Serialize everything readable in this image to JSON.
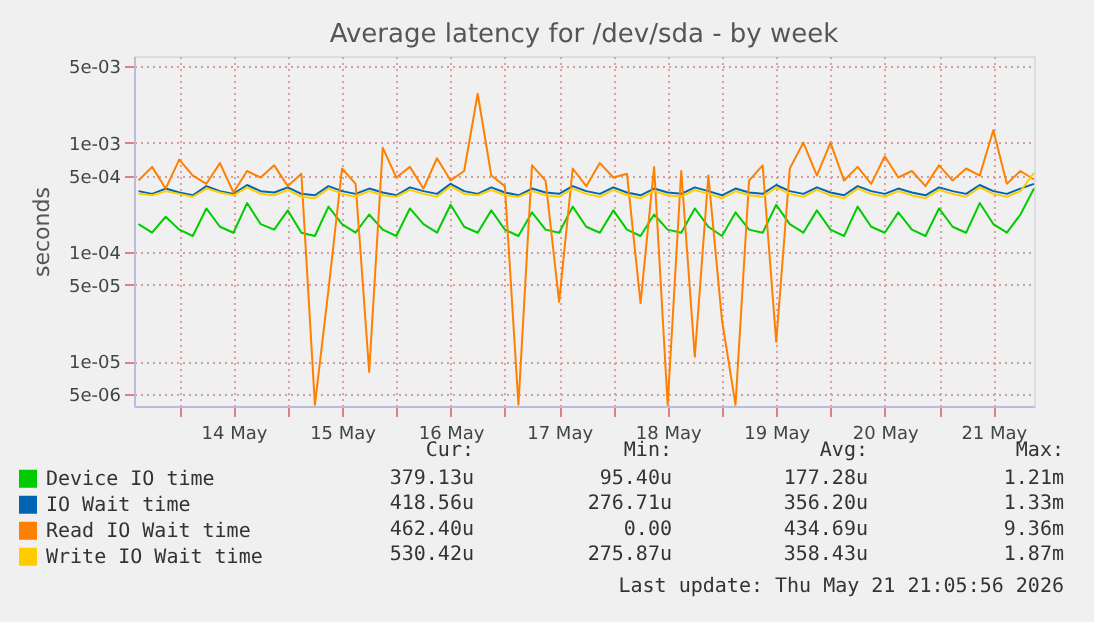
{
  "chart_data": {
    "type": "line",
    "title": "Average latency for /dev/sda - by week",
    "ylabel": "seconds",
    "log": "y",
    "grid": true,
    "legend": "bottom",
    "marker": "none",
    "line_style": "solid",
    "ylim": [
      3.9e-06,
      0.0062
    ],
    "yticks": [
      {
        "value": 0.005,
        "label": "5e-03"
      },
      {
        "value": 0.001,
        "label": "1e-03"
      },
      {
        "value": 0.0005,
        "label": "5e-04"
      },
      {
        "value": 0.0001,
        "label": "1e-04"
      },
      {
        "value": 5e-05,
        "label": "5e-05"
      },
      {
        "value": 1e-05,
        "label": "1e-05"
      },
      {
        "value": 5e-06,
        "label": "5e-06"
      }
    ],
    "xlim": [
      "2026-05-13T14:00",
      "2026-05-21T21:00"
    ],
    "xticks": [
      {
        "value": "2026-05-14T00:00",
        "label": null
      },
      {
        "value": "2026-05-14T12:00",
        "label": "14 May"
      },
      {
        "value": "2026-05-15T00:00",
        "label": null
      },
      {
        "value": "2026-05-15T12:00",
        "label": "15 May"
      },
      {
        "value": "2026-05-16T00:00",
        "label": null
      },
      {
        "value": "2026-05-16T12:00",
        "label": "16 May"
      },
      {
        "value": "2026-05-17T00:00",
        "label": null
      },
      {
        "value": "2026-05-17T12:00",
        "label": "17 May"
      },
      {
        "value": "2026-05-18T00:00",
        "label": null
      },
      {
        "value": "2026-05-18T12:00",
        "label": "18 May"
      },
      {
        "value": "2026-05-19T00:00",
        "label": null
      },
      {
        "value": "2026-05-19T12:00",
        "label": "19 May"
      },
      {
        "value": "2026-05-20T00:00",
        "label": null
      },
      {
        "value": "2026-05-20T12:00",
        "label": "20 May"
      },
      {
        "value": "2026-05-21T00:00",
        "label": null
      },
      {
        "value": "2026-05-21T12:00",
        "label": "21 May"
      }
    ],
    "x": [
      "2026-05-13T15:00",
      "2026-05-13T18:00",
      "2026-05-13T21:00",
      "2026-05-14T00:00",
      "2026-05-14T03:00",
      "2026-05-14T06:00",
      "2026-05-14T09:00",
      "2026-05-14T12:00",
      "2026-05-14T15:00",
      "2026-05-14T18:00",
      "2026-05-14T21:00",
      "2026-05-15T00:00",
      "2026-05-15T03:00",
      "2026-05-15T06:00",
      "2026-05-15T09:00",
      "2026-05-15T12:00",
      "2026-05-15T15:00",
      "2026-05-15T18:00",
      "2026-05-15T21:00",
      "2026-05-16T00:00",
      "2026-05-16T03:00",
      "2026-05-16T06:00",
      "2026-05-16T09:00",
      "2026-05-16T12:00",
      "2026-05-16T15:00",
      "2026-05-16T18:00",
      "2026-05-16T21:00",
      "2026-05-17T00:00",
      "2026-05-17T03:00",
      "2026-05-17T06:00",
      "2026-05-17T09:00",
      "2026-05-17T12:00",
      "2026-05-17T15:00",
      "2026-05-17T18:00",
      "2026-05-17T21:00",
      "2026-05-18T00:00",
      "2026-05-18T03:00",
      "2026-05-18T06:00",
      "2026-05-18T09:00",
      "2026-05-18T12:00",
      "2026-05-18T15:00",
      "2026-05-18T18:00",
      "2026-05-18T21:00",
      "2026-05-19T00:00",
      "2026-05-19T03:00",
      "2026-05-19T06:00",
      "2026-05-19T09:00",
      "2026-05-19T12:00",
      "2026-05-19T15:00",
      "2026-05-19T18:00",
      "2026-05-19T21:00",
      "2026-05-20T00:00",
      "2026-05-20T03:00",
      "2026-05-20T06:00",
      "2026-05-20T09:00",
      "2026-05-20T12:00",
      "2026-05-20T15:00",
      "2026-05-20T18:00",
      "2026-05-20T21:00",
      "2026-05-21T00:00",
      "2026-05-21T03:00",
      "2026-05-21T06:00",
      "2026-05-21T09:00",
      "2026-05-21T12:00",
      "2026-05-21T15:00",
      "2026-05-21T18:00",
      "2026-05-21T21:00"
    ],
    "series": [
      {
        "name": "Device IO time",
        "color": "#00cc00",
        "values": [
          0.00018,
          0.00015,
          0.00021,
          0.00016,
          0.00014,
          0.00025,
          0.00017,
          0.00015,
          0.00028,
          0.00018,
          0.00016,
          0.00024,
          0.00015,
          0.00014,
          0.00026,
          0.00018,
          0.00015,
          0.00022,
          0.00016,
          0.00014,
          0.00025,
          0.00018,
          0.00015,
          0.00027,
          0.00017,
          0.00015,
          0.00024,
          0.00016,
          0.00014,
          0.00023,
          0.00016,
          0.00015,
          0.00026,
          0.00017,
          0.00015,
          0.00024,
          0.00016,
          0.00014,
          0.00022,
          0.00016,
          0.00015,
          0.00025,
          0.00017,
          0.00014,
          0.00023,
          0.00016,
          0.00015,
          0.00027,
          0.00018,
          0.00015,
          0.00024,
          0.00016,
          0.00014,
          0.00026,
          0.00017,
          0.00015,
          0.00023,
          0.00016,
          0.00014,
          0.00025,
          0.00017,
          0.00015,
          0.00028,
          0.00018,
          0.00015,
          0.00022,
          0.00038
        ]
      },
      {
        "name": "IO Wait time",
        "color": "#0066b3",
        "values": [
          0.00036,
          0.00034,
          0.00038,
          0.00035,
          0.00033,
          0.0004,
          0.00036,
          0.00034,
          0.00041,
          0.00036,
          0.00035,
          0.00039,
          0.00034,
          0.00033,
          0.0004,
          0.00036,
          0.00034,
          0.00038,
          0.00035,
          0.00033,
          0.00039,
          0.00036,
          0.00034,
          0.00042,
          0.00036,
          0.00034,
          0.00039,
          0.00035,
          0.00033,
          0.00038,
          0.00035,
          0.00034,
          0.0004,
          0.00036,
          0.00034,
          0.00039,
          0.00035,
          0.00033,
          0.00038,
          0.00035,
          0.00034,
          0.00039,
          0.00036,
          0.00033,
          0.00038,
          0.00035,
          0.00034,
          0.00041,
          0.00036,
          0.00034,
          0.00039,
          0.00035,
          0.00033,
          0.0004,
          0.00036,
          0.00034,
          0.00038,
          0.00035,
          0.00033,
          0.00039,
          0.00036,
          0.00034,
          0.00041,
          0.00036,
          0.00034,
          0.00038,
          0.00042
        ]
      },
      {
        "name": "Read IO Wait time",
        "color": "#ff8000",
        "values": [
          0.00045,
          0.0006,
          0.00038,
          0.0007,
          0.0005,
          0.00042,
          0.00065,
          0.00035,
          0.00055,
          0.00048,
          0.00062,
          0.0004,
          0.00052,
          4e-06,
          4.5e-05,
          0.00058,
          0.00042,
          8e-06,
          0.0009,
          0.00048,
          0.0006,
          0.00038,
          0.00072,
          0.00045,
          0.00055,
          0.0028,
          0.0005,
          0.0004,
          4e-06,
          0.00062,
          0.00045,
          3.5e-05,
          0.00058,
          0.0004,
          0.00065,
          0.00048,
          0.00052,
          3.4e-05,
          0.0006,
          4e-06,
          0.00055,
          1.1e-05,
          0.0005,
          2.4e-05,
          4e-06,
          0.00045,
          0.00062,
          1.5e-05,
          0.00058,
          0.001,
          0.0005,
          0.001,
          0.00045,
          0.0006,
          0.00042,
          0.00075,
          0.00048,
          0.00055,
          0.0004,
          0.00062,
          0.00045,
          0.00058,
          0.0005,
          0.0013,
          0.00042,
          0.00055,
          0.00046
        ]
      },
      {
        "name": "Write IO Wait time",
        "color": "#ffcc00",
        "values": [
          0.00034,
          0.00033,
          0.00036,
          0.00034,
          0.00032,
          0.00038,
          0.00035,
          0.00033,
          0.00039,
          0.00034,
          0.00033,
          0.00037,
          0.00032,
          0.00031,
          0.00038,
          0.00034,
          0.00032,
          0.00036,
          0.00033,
          0.00032,
          0.00037,
          0.00034,
          0.00032,
          0.0004,
          0.00034,
          0.00033,
          0.00037,
          0.00033,
          0.00032,
          0.00036,
          0.00033,
          0.00032,
          0.00038,
          0.00034,
          0.00032,
          0.00037,
          0.00033,
          0.00031,
          0.00036,
          0.00033,
          0.00032,
          0.00037,
          0.00034,
          0.00031,
          0.00036,
          0.00033,
          0.00032,
          0.00039,
          0.00034,
          0.00032,
          0.00037,
          0.00033,
          0.00031,
          0.00038,
          0.00034,
          0.00032,
          0.00036,
          0.00033,
          0.00031,
          0.00037,
          0.00034,
          0.00032,
          0.00039,
          0.00034,
          0.00032,
          0.00036,
          0.00053
        ]
      }
    ],
    "annotations": [
      "Cur:",
      "Min:",
      "Avg:",
      "Max:",
      "379.13u",
      "95.40u",
      "177.28u",
      "1.21m",
      "418.56u",
      "276.71u",
      "356.20u",
      "1.33m",
      "462.40u",
      "0.00",
      "434.69u",
      "9.36m",
      "530.42u",
      "275.87u",
      "358.43u",
      "1.87m",
      "Last update: Thu May 21 21:05:56 2026"
    ]
  }
}
